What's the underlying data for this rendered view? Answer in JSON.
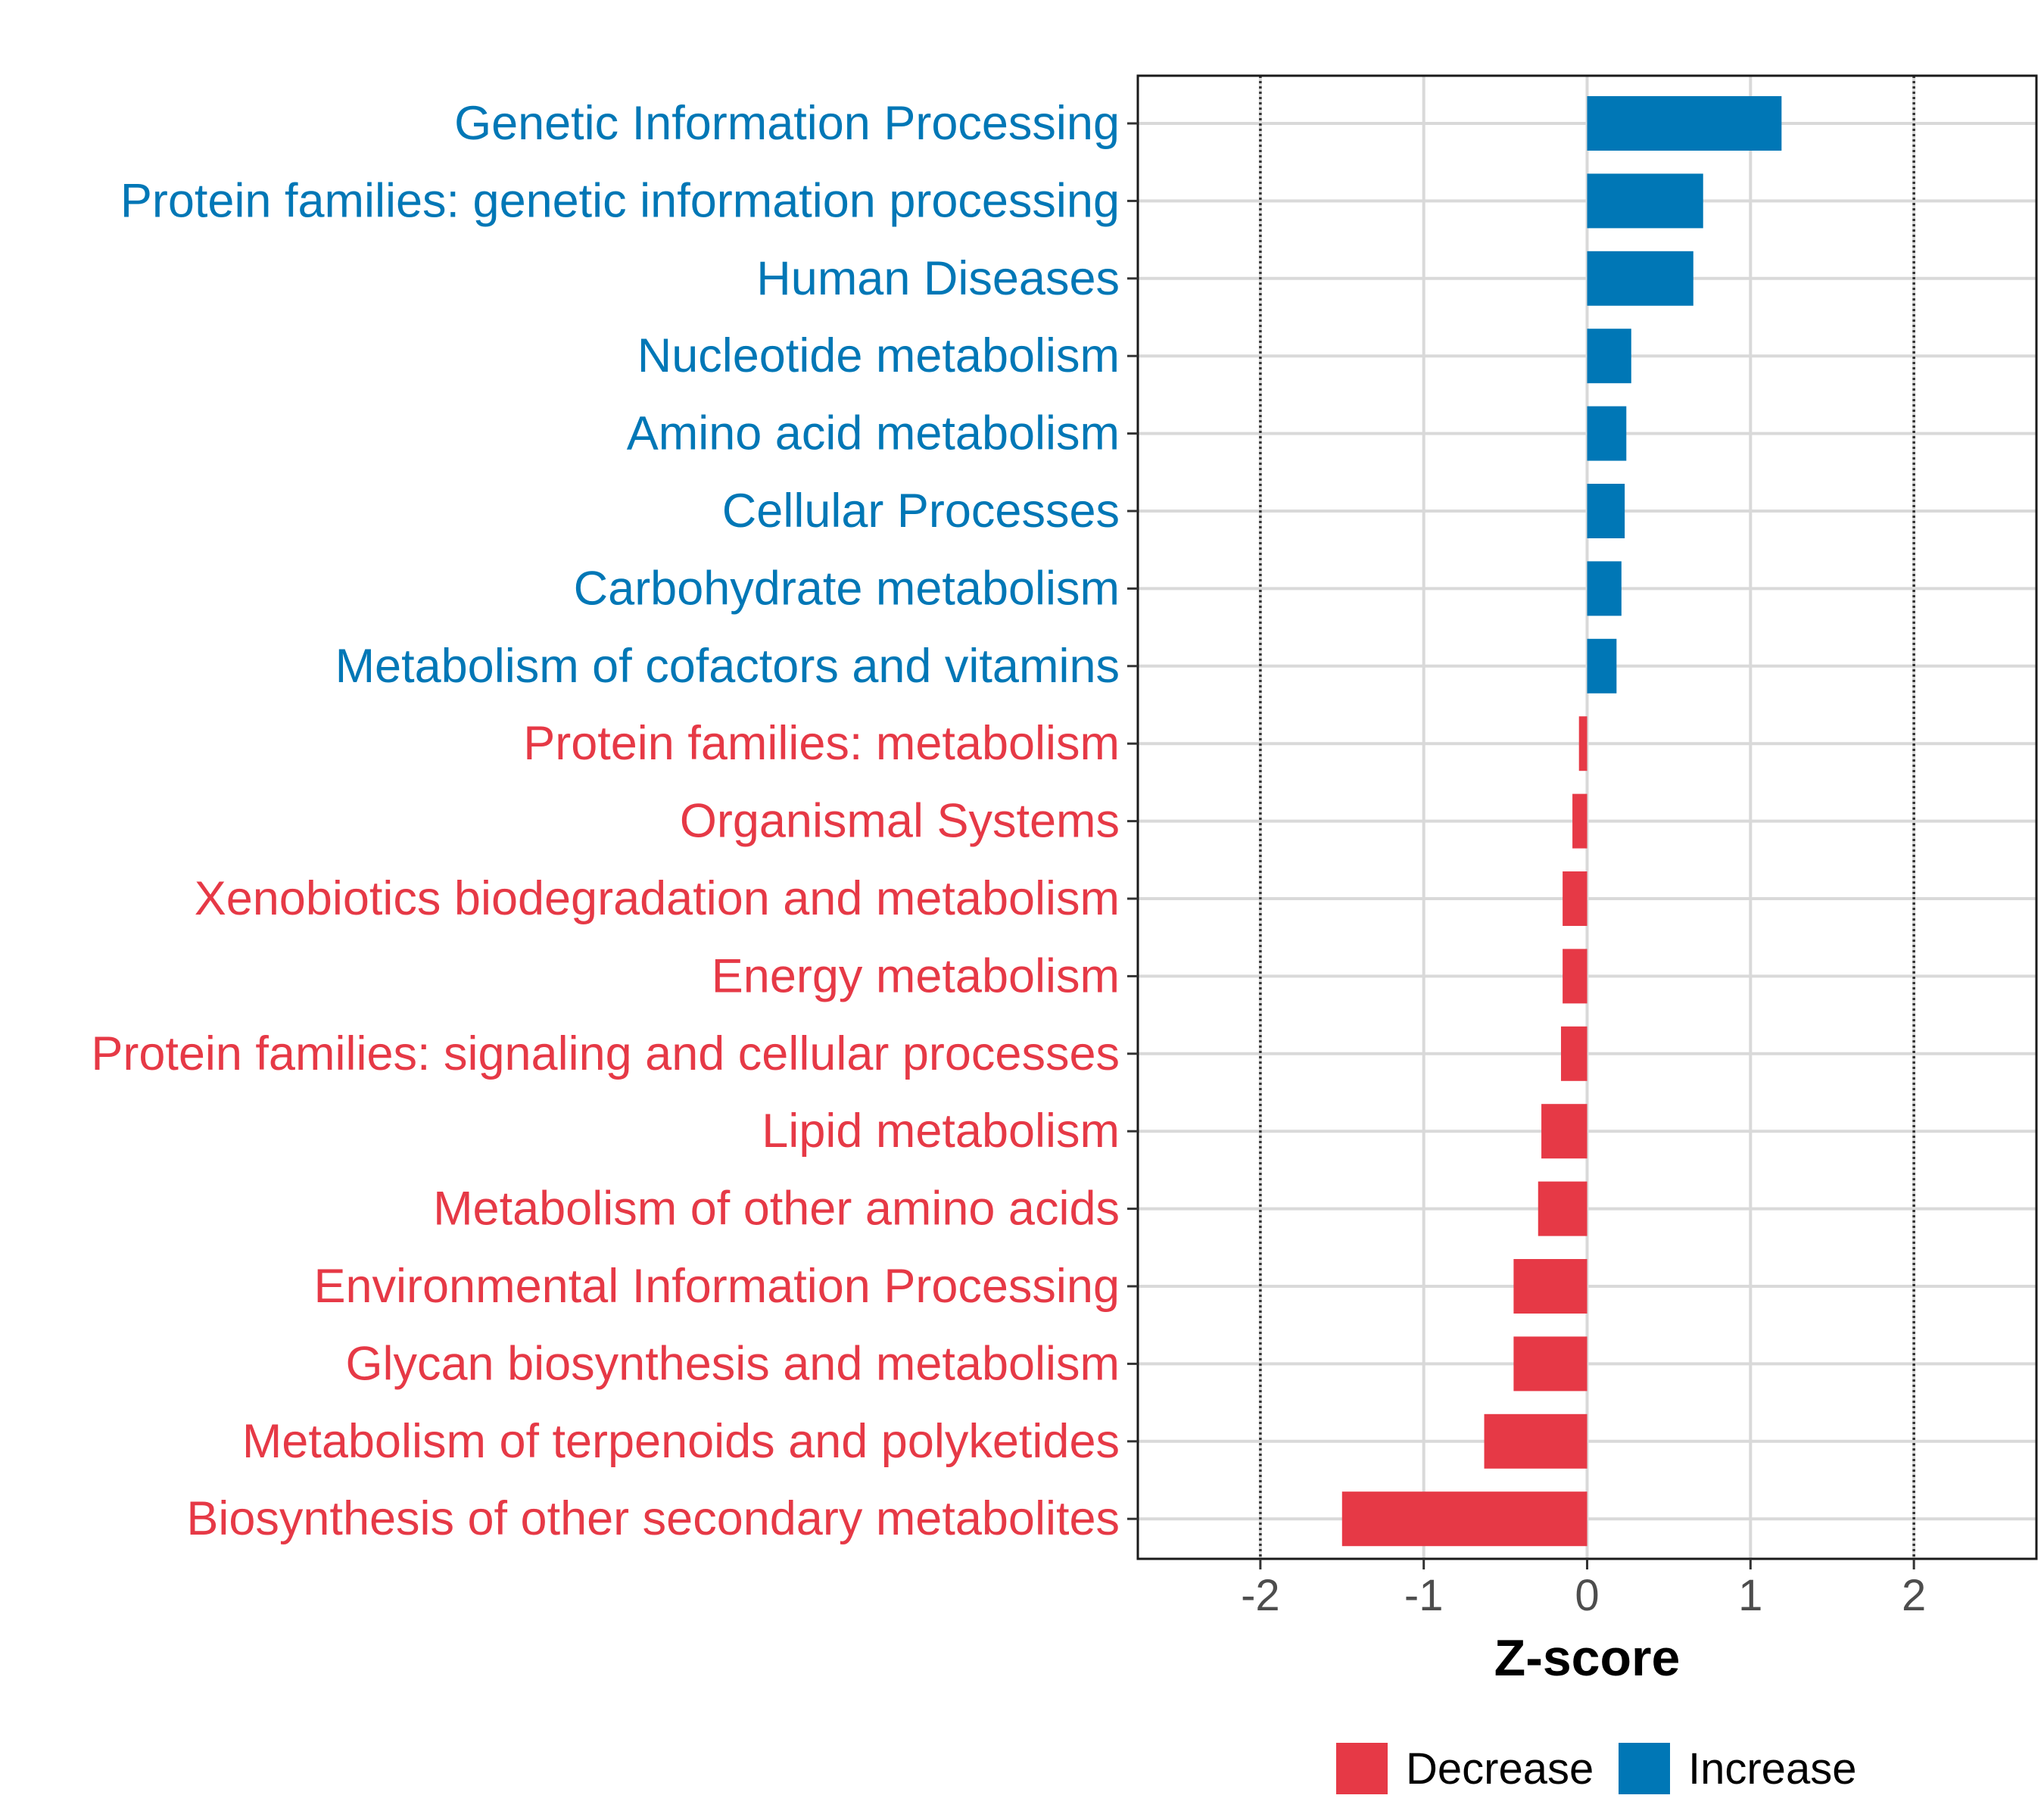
{
  "chart_data": {
    "type": "bar",
    "orientation": "horizontal",
    "title": "",
    "xlabel": "Z-score",
    "ylabel": "",
    "xlim": [
      -2.75,
      2.75
    ],
    "x_ticks": [
      "-2",
      "-1",
      "0",
      "1",
      "2"
    ],
    "x_tick_values": [
      -2,
      -1,
      0,
      1,
      2
    ],
    "reference_lines": [
      -2,
      2
    ],
    "grid": true,
    "colors": {
      "Decrease": "#e63946",
      "Increase": "#0077b6"
    },
    "categories": [
      "Genetic Information Processing",
      "Protein families: genetic information processing",
      "Human Diseases",
      "Nucleotide metabolism",
      "Amino acid metabolism",
      "Cellular Processes",
      "Carbohydrate metabolism",
      "Metabolism of cofactors and vitamins",
      "Protein families: metabolism",
      "Organismal Systems",
      "Xenobiotics biodegradation and metabolism",
      "Energy metabolism",
      "Protein families: signaling and cellular processes",
      "Lipid metabolism",
      "Metabolism of other amino acids",
      "Environmental Information Processing",
      "Glycan biosynthesis and metabolism",
      "Metabolism of terpenoids and polyketides",
      "Biosynthesis of other secondary metabolites"
    ],
    "values": [
      1.19,
      0.71,
      0.65,
      0.27,
      0.24,
      0.23,
      0.21,
      0.18,
      -0.05,
      -0.09,
      -0.15,
      -0.15,
      -0.16,
      -0.28,
      -0.3,
      -0.45,
      -0.45,
      -0.63,
      -1.5
    ],
    "groups": [
      "Increase",
      "Increase",
      "Increase",
      "Increase",
      "Increase",
      "Increase",
      "Increase",
      "Increase",
      "Decrease",
      "Decrease",
      "Decrease",
      "Decrease",
      "Decrease",
      "Decrease",
      "Decrease",
      "Decrease",
      "Decrease",
      "Decrease",
      "Decrease"
    ],
    "legend": {
      "position": "bottom",
      "entries": [
        {
          "label": "Decrease",
          "color": "#e63946"
        },
        {
          "label": "Increase",
          "color": "#0077b6"
        }
      ]
    }
  }
}
